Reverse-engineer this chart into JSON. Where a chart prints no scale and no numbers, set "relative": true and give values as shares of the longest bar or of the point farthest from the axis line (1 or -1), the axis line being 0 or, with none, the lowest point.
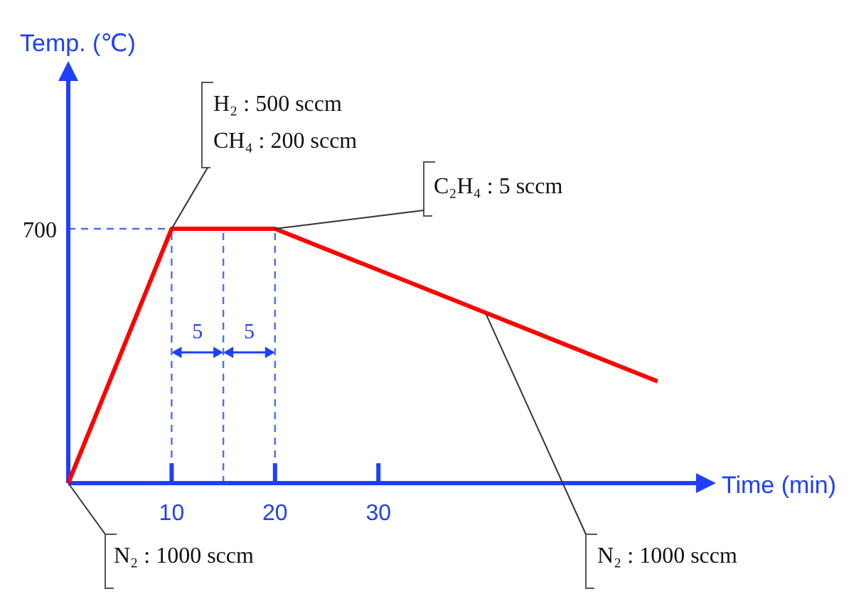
{
  "chart_data": {
    "type": "line",
    "xlabel": "Time (min)",
    "relative": true,
    "x": [
      0,
      10,
      20,
      57
    ],
    "series": [
      {
        "color": "#ff0000",
        "values": [
          0,
          1,
          1,
          0.4
        ]
      }
    ],
    "xlim": [
      0,
      61
    ],
    "xticks": [
      10,
      20,
      30
    ],
    "marker": "none",
    "line_style": "solid",
    "ref_lines": [
      {
        "axis": "y",
        "value": 1,
        "color": "#4a6cff",
        "line_style": "dashed"
      },
      {
        "axis": "x",
        "value": 10,
        "color": "#4a6cff",
        "line_style": "dashed"
      },
      {
        "axis": "x",
        "value": 15,
        "color": "#4a6cff",
        "line_style": "dashed"
      },
      {
        "axis": "x",
        "value": 20,
        "color": "#4a6cff",
        "line_style": "dashed"
      }
    ],
    "annotations": [
      "H₂ : 500 sccm",
      "CH₄ : 200 sccm",
      {
        "text": "C₂H₄ : 5 sccm",
        "x": 20,
        "y": 1
      },
      {
        "text": "N₂ : 1000 sccm",
        "x": 0,
        "y": 0
      },
      "N₂ : 1000 sccm",
      "5",
      "5",
      "700",
      "Temp. (℃)"
    ]
  }
}
